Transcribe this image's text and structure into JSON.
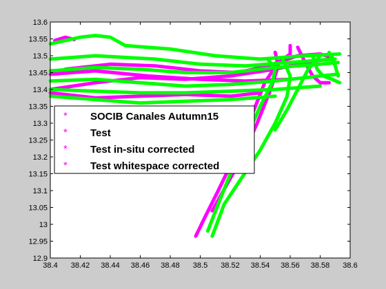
{
  "colors": {
    "figure_bg": "#cccccc",
    "axes_bg": "#ffffff",
    "magenta": "#ff00ff",
    "green": "#00ff00",
    "axis": "#000000"
  },
  "chart_data": {
    "type": "scatter",
    "title": "",
    "xlabel": "",
    "ylabel": "",
    "xlim": [
      38.4,
      38.6
    ],
    "ylim": [
      12.9,
      13.6
    ],
    "grid": false,
    "legend_position": "center-left",
    "x_ticks": [
      "38.4",
      "38.42",
      "38.44",
      "38.46",
      "38.48",
      "38.5",
      "38.52",
      "38.54",
      "38.56",
      "38.58",
      "38.6"
    ],
    "y_ticks": [
      "12.9",
      "12.95",
      "13",
      "13.05",
      "13.1",
      "13.15",
      "13.2",
      "13.25",
      "13.3",
      "13.35",
      "13.4",
      "13.45",
      "13.5",
      "13.55",
      "13.6"
    ],
    "legend": [
      {
        "label": "SOCIB Canales Autumn15",
        "color": "#ff00ff"
      },
      {
        "label": "Test",
        "color": "#ff00ff"
      },
      {
        "label": "Test in-situ corrected",
        "color": "#ff00ff"
      },
      {
        "label": "Test whitespace corrected",
        "color": "#ff00ff"
      }
    ],
    "series": [
      {
        "color": "#ff00ff",
        "lines": [
          [
            [
              38.403,
              13.545
            ],
            [
              38.41,
              13.555
            ],
            [
              38.416,
              13.548
            ]
          ],
          [
            [
              38.41,
              13.46
            ],
            [
              38.44,
              13.475
            ],
            [
              38.47,
              13.47
            ],
            [
              38.5,
              13.455
            ],
            [
              38.525,
              13.45
            ],
            [
              38.545,
              13.47
            ],
            [
              38.565,
              13.5
            ],
            [
              38.58,
              13.505
            ],
            [
              38.588,
              13.495
            ]
          ],
          [
            [
              38.4,
              13.4
            ],
            [
              38.43,
              13.42
            ],
            [
              38.46,
              13.435
            ],
            [
              38.49,
              13.43
            ],
            [
              38.52,
              13.44
            ],
            [
              38.55,
              13.46
            ],
            [
              38.57,
              13.48
            ],
            [
              38.586,
              13.49
            ]
          ],
          [
            [
              38.4,
              13.445
            ],
            [
              38.43,
              13.455
            ],
            [
              38.465,
              13.44
            ],
            [
              38.5,
              13.43
            ],
            [
              38.53,
              13.425
            ],
            [
              38.56,
              13.43
            ]
          ],
          [
            [
              38.4,
              13.39
            ],
            [
              38.43,
              13.375
            ],
            [
              38.46,
              13.38
            ],
            [
              38.49,
              13.385
            ],
            [
              38.52,
              13.38
            ],
            [
              38.54,
              13.39
            ]
          ],
          [
            [
              38.56,
              13.53
            ],
            [
              38.56,
              13.505
            ],
            [
              38.552,
              13.48
            ],
            [
              38.543,
              13.42
            ],
            [
              38.535,
              13.33
            ],
            [
              38.525,
              13.22
            ],
            [
              38.512,
              13.1
            ],
            [
              38.503,
              13.02
            ],
            [
              38.497,
              12.965
            ]
          ],
          [
            [
              38.55,
              13.51
            ],
            [
              38.552,
              13.47
            ],
            [
              38.547,
              13.4
            ],
            [
              38.538,
              13.3
            ],
            [
              38.528,
              13.2
            ],
            [
              38.518,
              13.12
            ],
            [
              38.508,
              13.04
            ]
          ],
          [
            [
              38.565,
              13.525
            ],
            [
              38.57,
              13.48
            ],
            [
              38.575,
              13.44
            ],
            [
              38.58,
              13.42
            ],
            [
              38.586,
              13.42
            ]
          ]
        ]
      },
      {
        "color": "#00ff00",
        "lines": [
          [
            [
              38.4,
              13.535
            ],
            [
              38.42,
              13.555
            ],
            [
              38.43,
              13.56
            ],
            [
              38.44,
              13.555
            ],
            [
              38.45,
              13.53
            ],
            [
              38.48,
              13.52
            ],
            [
              38.51,
              13.5
            ],
            [
              38.54,
              13.49
            ],
            [
              38.57,
              13.5
            ],
            [
              38.593,
              13.505
            ]
          ],
          [
            [
              38.4,
              13.49
            ],
            [
              38.43,
              13.5
            ],
            [
              38.47,
              13.49
            ],
            [
              38.5,
              13.475
            ],
            [
              38.53,
              13.47
            ],
            [
              38.56,
              13.48
            ],
            [
              38.59,
              13.49
            ]
          ],
          [
            [
              38.4,
              13.455
            ],
            [
              38.43,
              13.465
            ],
            [
              38.46,
              13.46
            ],
            [
              38.49,
              13.45
            ],
            [
              38.52,
              13.45
            ],
            [
              38.55,
              13.465
            ],
            [
              38.58,
              13.475
            ],
            [
              38.592,
              13.48
            ]
          ],
          [
            [
              38.4,
              13.425
            ],
            [
              38.43,
              13.43
            ],
            [
              38.46,
              13.42
            ],
            [
              38.49,
              13.41
            ],
            [
              38.52,
              13.415
            ],
            [
              38.55,
              13.425
            ],
            [
              38.58,
              13.44
            ],
            [
              38.592,
              13.445
            ]
          ],
          [
            [
              38.4,
              13.4
            ],
            [
              38.43,
              13.395
            ],
            [
              38.46,
              13.39
            ],
            [
              38.49,
              13.39
            ],
            [
              38.52,
              13.395
            ],
            [
              38.55,
              13.4
            ],
            [
              38.58,
              13.41
            ]
          ],
          [
            [
              38.4,
              13.38
            ],
            [
              38.43,
              13.37
            ],
            [
              38.46,
              13.36
            ],
            [
              38.49,
              13.365
            ],
            [
              38.52,
              13.37
            ],
            [
              38.55,
              13.38
            ]
          ],
          [
            [
              38.545,
              13.49
            ],
            [
              38.55,
              13.46
            ],
            [
              38.548,
              13.42
            ],
            [
              38.54,
              13.35
            ],
            [
              38.532,
              13.27
            ],
            [
              38.522,
              13.17
            ],
            [
              38.512,
              13.06
            ],
            [
              38.505,
              12.98
            ]
          ],
          [
            [
              38.555,
              13.49
            ],
            [
              38.56,
              13.44
            ],
            [
              38.558,
              13.38
            ],
            [
              38.55,
              13.3
            ],
            [
              38.54,
              13.22
            ],
            [
              38.528,
              13.14
            ],
            [
              38.516,
              13.06
            ],
            [
              38.508,
              12.965
            ]
          ],
          [
            [
              38.575,
              13.5
            ],
            [
              38.578,
              13.46
            ],
            [
              38.582,
              13.44
            ],
            [
              38.588,
              13.43
            ],
            [
              38.593,
              13.42
            ]
          ],
          [
            [
              38.58,
              13.5
            ],
            [
              38.572,
              13.46
            ],
            [
              38.565,
              13.4
            ],
            [
              38.558,
              13.34
            ],
            [
              38.55,
              13.28
            ]
          ],
          [
            [
              38.586,
              13.51
            ],
            [
              38.59,
              13.47
            ],
            [
              38.592,
              13.44
            ]
          ]
        ]
      }
    ]
  }
}
